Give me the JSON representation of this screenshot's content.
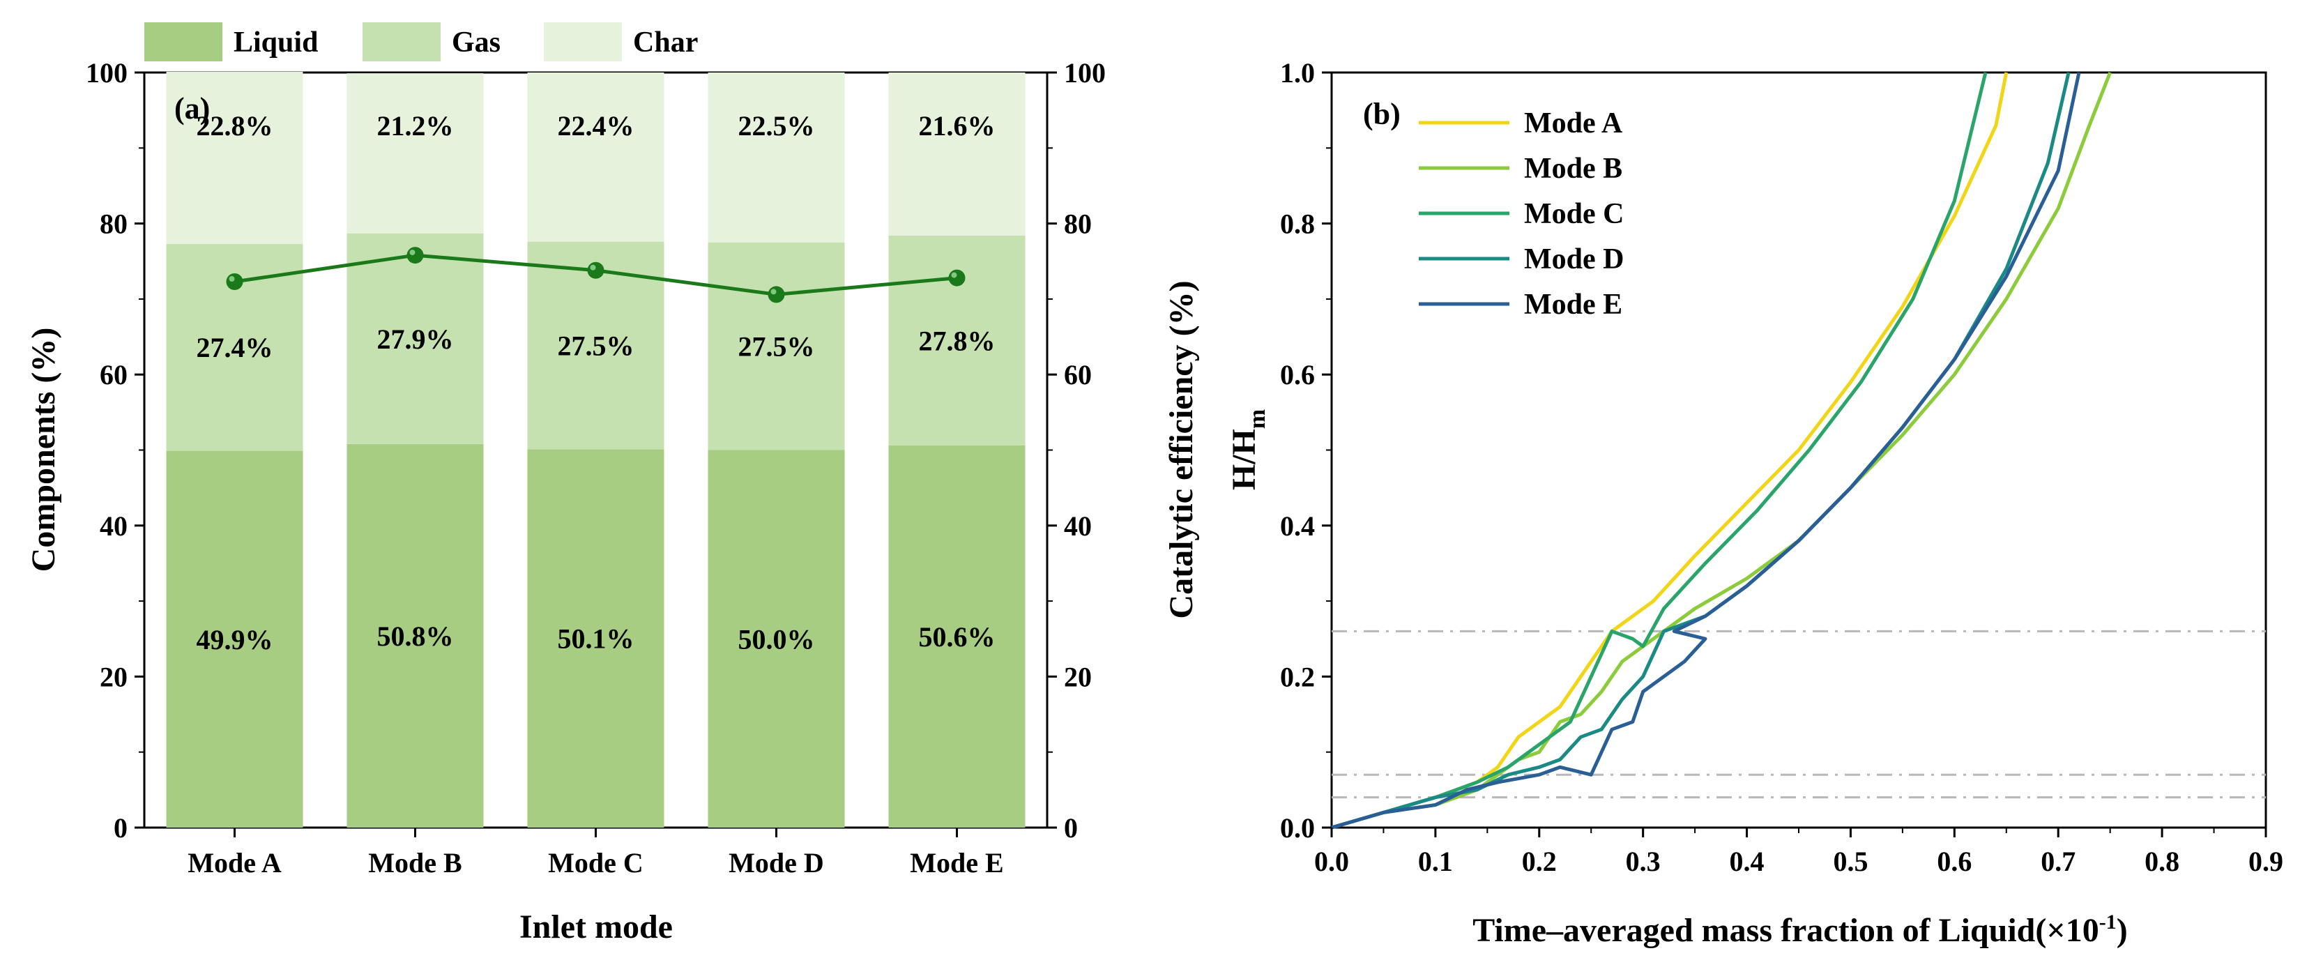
{
  "chart_data": [
    {
      "panel": "(a)",
      "type": "bar",
      "stacked": true,
      "categories": [
        "Mode A",
        "Mode B",
        "Mode C",
        "Mode D",
        "Mode E"
      ],
      "series": [
        {
          "name": "Liquid",
          "values": [
            49.9,
            50.8,
            50.1,
            50.0,
            50.6
          ],
          "labels": [
            "49.9%",
            "50.8%",
            "50.1%",
            "50.0%",
            "50.6%"
          ],
          "color": "#a6cd82"
        },
        {
          "name": "Gas",
          "values": [
            27.4,
            27.9,
            27.5,
            27.5,
            27.8
          ],
          "labels": [
            "27.4%",
            "27.9%",
            "27.5%",
            "27.5%",
            "27.8%"
          ],
          "color": "#c6e1b0"
        },
        {
          "name": "Char",
          "values": [
            22.8,
            21.2,
            22.4,
            22.5,
            21.6
          ],
          "labels": [
            "22.8%",
            "21.2%",
            "22.4%",
            "22.5%",
            "21.6%"
          ],
          "color": "#e6f2dc"
        }
      ],
      "line": {
        "name": "Catalytic efficiency",
        "values": [
          72.3,
          75.8,
          73.8,
          70.6,
          72.8
        ],
        "color": "#1a7a1a"
      },
      "xlabel": "Inlet mode",
      "ylabel": "Components (%)",
      "y2label": "Catalytic efficiency (%)",
      "ylim": [
        0,
        100
      ],
      "y2lim": [
        0,
        100
      ],
      "yticks": [
        "0",
        "20",
        "40",
        "60",
        "80",
        "100"
      ],
      "y2ticks": [
        "0",
        "20",
        "40",
        "60",
        "80",
        "100"
      ]
    },
    {
      "panel": "(b)",
      "type": "line",
      "xlabel": "Time–averaged mass fraction of Liquid(×10",
      "xlabel_sup": "-1",
      "xlabel_end": ")",
      "ylabel": "H/H",
      "ylabel_sub": "m",
      "xlim": [
        0.0,
        0.9
      ],
      "ylim": [
        0.0,
        1.0
      ],
      "xticks": [
        "0.0",
        "0.1",
        "0.2",
        "0.3",
        "0.4",
        "0.5",
        "0.6",
        "0.7",
        "0.8",
        "0.9"
      ],
      "yticks": [
        "0.0",
        "0.2",
        "0.4",
        "0.6",
        "0.8",
        "1.0"
      ],
      "reference_lines_y": [
        0.04,
        0.07,
        0.26
      ],
      "series": [
        {
          "name": "Mode A",
          "color": "#f2d516",
          "x": [
            0.0,
            0.05,
            0.1,
            0.14,
            0.16,
            0.18,
            0.2,
            0.21,
            0.22,
            0.24,
            0.27,
            0.29,
            0.31,
            0.35,
            0.4,
            0.45,
            0.5,
            0.55,
            0.6,
            0.64,
            0.65
          ],
          "y": [
            0.0,
            0.02,
            0.04,
            0.06,
            0.08,
            0.12,
            0.14,
            0.15,
            0.16,
            0.2,
            0.26,
            0.28,
            0.3,
            0.36,
            0.43,
            0.5,
            0.59,
            0.69,
            0.81,
            0.93,
            1.0
          ]
        },
        {
          "name": "Mode B",
          "color": "#8ccb3a",
          "x": [
            0.0,
            0.05,
            0.1,
            0.14,
            0.16,
            0.18,
            0.2,
            0.22,
            0.24,
            0.26,
            0.28,
            0.3,
            0.32,
            0.35,
            0.4,
            0.45,
            0.5,
            0.55,
            0.6,
            0.65,
            0.7,
            0.73,
            0.75
          ],
          "y": [
            0.0,
            0.02,
            0.03,
            0.05,
            0.07,
            0.09,
            0.1,
            0.14,
            0.15,
            0.18,
            0.22,
            0.24,
            0.26,
            0.29,
            0.33,
            0.38,
            0.45,
            0.52,
            0.6,
            0.7,
            0.82,
            0.93,
            1.0
          ]
        },
        {
          "name": "Mode C",
          "color": "#2aa56a",
          "x": [
            0.0,
            0.05,
            0.1,
            0.14,
            0.17,
            0.19,
            0.21,
            0.22,
            0.23,
            0.25,
            0.27,
            0.29,
            0.3,
            0.32,
            0.36,
            0.41,
            0.46,
            0.51,
            0.56,
            0.6,
            0.63
          ],
          "y": [
            0.0,
            0.02,
            0.04,
            0.06,
            0.08,
            0.1,
            0.12,
            0.13,
            0.14,
            0.2,
            0.26,
            0.25,
            0.24,
            0.29,
            0.35,
            0.42,
            0.5,
            0.59,
            0.7,
            0.83,
            1.0
          ]
        },
        {
          "name": "Mode D",
          "color": "#1a8a84",
          "x": [
            0.0,
            0.05,
            0.1,
            0.14,
            0.17,
            0.2,
            0.22,
            0.24,
            0.26,
            0.28,
            0.3,
            0.31,
            0.32,
            0.34,
            0.36,
            0.4,
            0.45,
            0.5,
            0.55,
            0.6,
            0.65,
            0.69,
            0.71
          ],
          "y": [
            0.0,
            0.02,
            0.04,
            0.05,
            0.07,
            0.08,
            0.09,
            0.12,
            0.13,
            0.17,
            0.2,
            0.23,
            0.26,
            0.27,
            0.28,
            0.32,
            0.38,
            0.45,
            0.53,
            0.62,
            0.74,
            0.88,
            1.0
          ]
        },
        {
          "name": "Mode E",
          "color": "#2a5e96",
          "x": [
            0.0,
            0.05,
            0.1,
            0.13,
            0.16,
            0.2,
            0.22,
            0.25,
            0.27,
            0.29,
            0.3,
            0.32,
            0.34,
            0.36,
            0.33,
            0.36,
            0.4,
            0.45,
            0.5,
            0.55,
            0.6,
            0.65,
            0.7,
            0.72
          ],
          "y": [
            0.0,
            0.02,
            0.03,
            0.05,
            0.06,
            0.07,
            0.08,
            0.07,
            0.13,
            0.14,
            0.18,
            0.2,
            0.22,
            0.25,
            0.26,
            0.28,
            0.32,
            0.38,
            0.45,
            0.53,
            0.62,
            0.73,
            0.87,
            1.0
          ]
        }
      ]
    }
  ]
}
